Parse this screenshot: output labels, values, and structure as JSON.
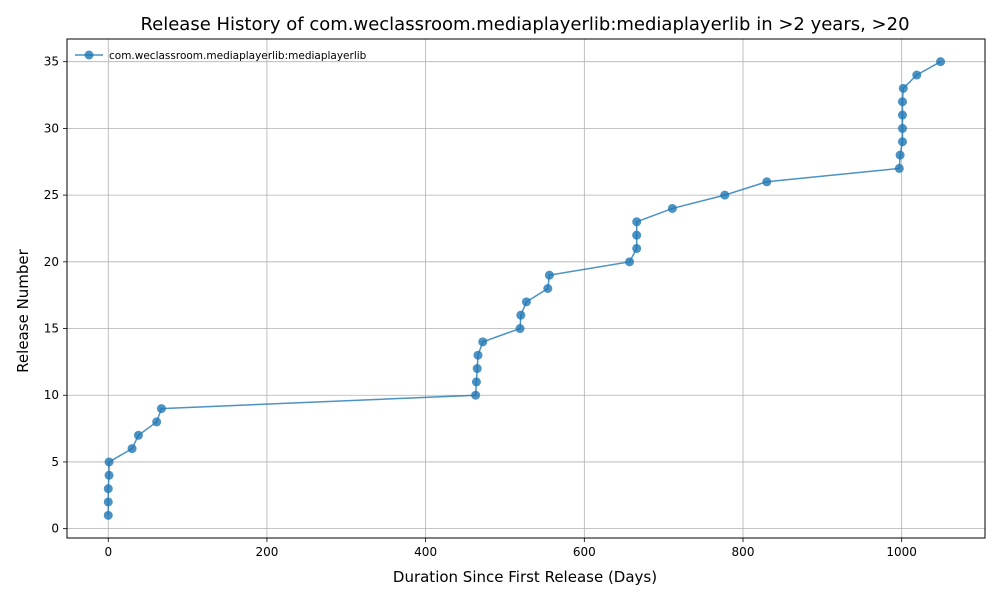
{
  "chart_data": {
    "type": "line",
    "title": "Release History of com.weclassroom.mediaplayerlib:mediaplayerlib in >2 years, >20",
    "xlabel": "Duration Since First Release (Days)",
    "ylabel": "Release Number",
    "xlim": [
      -52,
      1105
    ],
    "ylim": [
      -0.7,
      36.7
    ],
    "xticks": [
      0,
      200,
      400,
      600,
      800,
      1000
    ],
    "yticks": [
      0,
      5,
      10,
      15,
      20,
      25,
      30,
      35
    ],
    "grid": true,
    "legend_position": "top-left",
    "color": "#1f77b4",
    "series": [
      {
        "name": "com.weclassroom.mediaplayerlib:mediaplayerlib",
        "x": [
          0,
          0,
          0,
          1,
          1,
          30,
          38,
          61,
          67,
          463,
          464,
          465,
          466,
          472,
          519,
          520,
          527,
          554,
          556,
          657,
          666,
          666,
          666,
          711,
          777,
          830,
          997,
          998,
          1001,
          1001,
          1001,
          1001,
          1002,
          1019,
          1049
        ],
        "y": [
          1,
          2,
          3,
          4,
          5,
          6,
          7,
          8,
          9,
          10,
          11,
          12,
          13,
          14,
          15,
          16,
          17,
          18,
          19,
          20,
          21,
          22,
          23,
          24,
          25,
          26,
          27,
          28,
          29,
          30,
          31,
          32,
          33,
          34,
          35
        ]
      }
    ]
  }
}
